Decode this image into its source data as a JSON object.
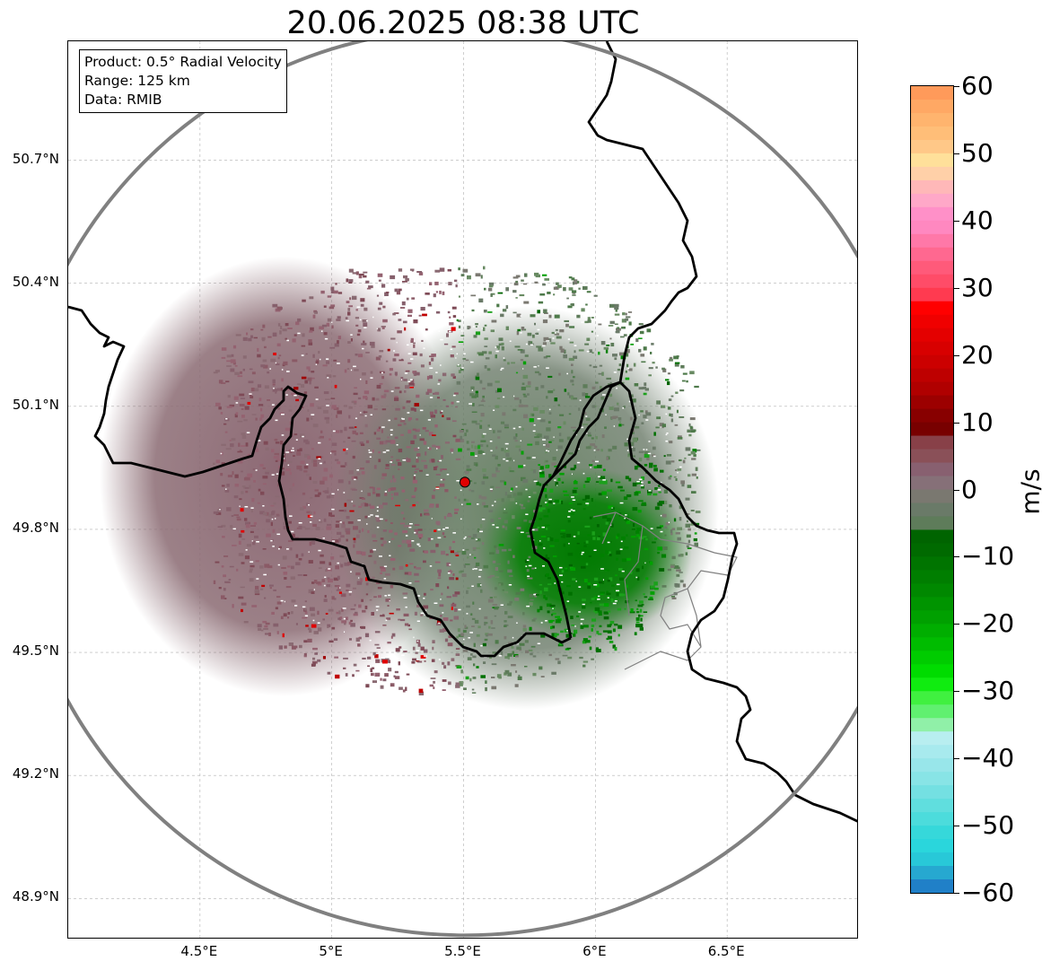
{
  "title": "20.06.2025 08:38 UTC",
  "info_box": {
    "product": "Product: 0.5° Radial Velocity",
    "range": "Range: 125 km",
    "data": "Data: RMIB"
  },
  "axes": {
    "lat_range": [
      48.8,
      50.99
    ],
    "lon_range": [
      4.0,
      7.0
    ],
    "lat_ticks": [
      {
        "value": 50.7,
        "label": "50.7°N"
      },
      {
        "value": 50.4,
        "label": "50.4°N"
      },
      {
        "value": 50.1,
        "label": "50.1°N"
      },
      {
        "value": 49.8,
        "label": "49.8°N"
      },
      {
        "value": 49.5,
        "label": "49.5°N"
      },
      {
        "value": 49.2,
        "label": "49.2°N"
      },
      {
        "value": 48.9,
        "label": "48.9°N"
      }
    ],
    "lon_ticks": [
      {
        "value": 4.5,
        "label": "4.5°E"
      },
      {
        "value": 5.0,
        "label": "5°E"
      },
      {
        "value": 5.5,
        "label": "5.5°E"
      },
      {
        "value": 6.0,
        "label": "6°E"
      },
      {
        "value": 6.5,
        "label": "6.5°E"
      }
    ],
    "grid": true
  },
  "radar": {
    "lat": 49.915,
    "lon": 5.505,
    "marker_color": "#e00000",
    "range_ring_color": "#808080"
  },
  "colorbar": {
    "unit": "m/s",
    "min": -60,
    "max": 60,
    "ticks": [
      {
        "value": 60,
        "label": "60"
      },
      {
        "value": 50,
        "label": "50"
      },
      {
        "value": 40,
        "label": "40"
      },
      {
        "value": 30,
        "label": "30"
      },
      {
        "value": 20,
        "label": "20"
      },
      {
        "value": 10,
        "label": "10"
      },
      {
        "value": 0,
        "label": "0"
      },
      {
        "value": -10,
        "label": "−10"
      },
      {
        "value": -20,
        "label": "−20"
      },
      {
        "value": -30,
        "label": "−30"
      },
      {
        "value": -40,
        "label": "−40"
      },
      {
        "value": -50,
        "label": "−50"
      },
      {
        "value": -60,
        "label": "−60"
      }
    ],
    "bands": [
      {
        "from": 58,
        "to": 60,
        "color": "#ff9a5a"
      },
      {
        "from": 56,
        "to": 58,
        "color": "#ffa864"
      },
      {
        "from": 54,
        "to": 56,
        "color": "#ffb46e"
      },
      {
        "from": 52,
        "to": 54,
        "color": "#ffbe78"
      },
      {
        "from": 50,
        "to": 52,
        "color": "#ffc888"
      },
      {
        "from": 48,
        "to": 50,
        "color": "#ffe09a"
      },
      {
        "from": 46,
        "to": 48,
        "color": "#ffd0a8"
      },
      {
        "from": 44,
        "to": 46,
        "color": "#ffb8b8"
      },
      {
        "from": 42,
        "to": 44,
        "color": "#ffa8c8"
      },
      {
        "from": 40,
        "to": 42,
        "color": "#ff90c8"
      },
      {
        "from": 38,
        "to": 40,
        "color": "#ff88c0"
      },
      {
        "from": 36,
        "to": 38,
        "color": "#ff78a8"
      },
      {
        "from": 34,
        "to": 36,
        "color": "#ff6890"
      },
      {
        "from": 32,
        "to": 34,
        "color": "#ff5a7a"
      },
      {
        "from": 30,
        "to": 32,
        "color": "#ff4c68"
      },
      {
        "from": 28,
        "to": 30,
        "color": "#ff3a50"
      },
      {
        "from": 26,
        "to": 28,
        "color": "#ff0000"
      },
      {
        "from": 24,
        "to": 26,
        "color": "#f00000"
      },
      {
        "from": 22,
        "to": 24,
        "color": "#e40000"
      },
      {
        "from": 20,
        "to": 22,
        "color": "#d80000"
      },
      {
        "from": 18,
        "to": 20,
        "color": "#cc0000"
      },
      {
        "from": 16,
        "to": 18,
        "color": "#be0000"
      },
      {
        "from": 14,
        "to": 16,
        "color": "#b00000"
      },
      {
        "from": 12,
        "to": 14,
        "color": "#9c0000"
      },
      {
        "from": 10,
        "to": 12,
        "color": "#880000"
      },
      {
        "from": 8,
        "to": 10,
        "color": "#780000"
      },
      {
        "from": 6,
        "to": 8,
        "color": "#884048"
      },
      {
        "from": 4,
        "to": 6,
        "color": "#8a5058"
      },
      {
        "from": 2,
        "to": 4,
        "color": "#886070"
      },
      {
        "from": 0,
        "to": 2,
        "color": "#867078"
      },
      {
        "from": -2,
        "to": 0,
        "color": "#7a7870"
      },
      {
        "from": -4,
        "to": -2,
        "color": "#6a7a68"
      },
      {
        "from": -6,
        "to": -4,
        "color": "#5e7c5a"
      },
      {
        "from": -8,
        "to": -6,
        "color": "#006400"
      },
      {
        "from": -10,
        "to": -8,
        "color": "#006a00"
      },
      {
        "from": -12,
        "to": -10,
        "color": "#007400"
      },
      {
        "from": -14,
        "to": -12,
        "color": "#007e00"
      },
      {
        "from": -16,
        "to": -14,
        "color": "#008800"
      },
      {
        "from": -18,
        "to": -16,
        "color": "#009400"
      },
      {
        "from": -20,
        "to": -18,
        "color": "#00a000"
      },
      {
        "from": -22,
        "to": -20,
        "color": "#00ae00"
      },
      {
        "from": -24,
        "to": -22,
        "color": "#00bc00"
      },
      {
        "from": -26,
        "to": -24,
        "color": "#00cc00"
      },
      {
        "from": -28,
        "to": -26,
        "color": "#00dc00"
      },
      {
        "from": -30,
        "to": -28,
        "color": "#10ec10"
      },
      {
        "from": -32,
        "to": -30,
        "color": "#40f040"
      },
      {
        "from": -34,
        "to": -32,
        "color": "#60f070"
      },
      {
        "from": -36,
        "to": -34,
        "color": "#90f0a8"
      },
      {
        "from": -38,
        "to": -36,
        "color": "#b8eef0"
      },
      {
        "from": -40,
        "to": -38,
        "color": "#a8eaee"
      },
      {
        "from": -42,
        "to": -40,
        "color": "#98e6ea"
      },
      {
        "from": -44,
        "to": -42,
        "color": "#88e4e6"
      },
      {
        "from": -46,
        "to": -44,
        "color": "#74e0e2"
      },
      {
        "from": -48,
        "to": -46,
        "color": "#60dede"
      },
      {
        "from": -50,
        "to": -48,
        "color": "#4cdcdc"
      },
      {
        "from": -52,
        "to": -50,
        "color": "#36d8da"
      },
      {
        "from": -54,
        "to": -52,
        "color": "#2ad6dc"
      },
      {
        "from": -56,
        "to": -54,
        "color": "#28c8d8"
      },
      {
        "from": -58,
        "to": -56,
        "color": "#26a8d0"
      },
      {
        "from": -60,
        "to": -58,
        "color": "#2080c8"
      }
    ]
  },
  "colors": {
    "approaching": "#008000",
    "receding": "#8a5a66",
    "neutral": "#7a7870",
    "border_national": "#000000",
    "border_regional": "#808080",
    "grid": "#b0b0b0"
  }
}
